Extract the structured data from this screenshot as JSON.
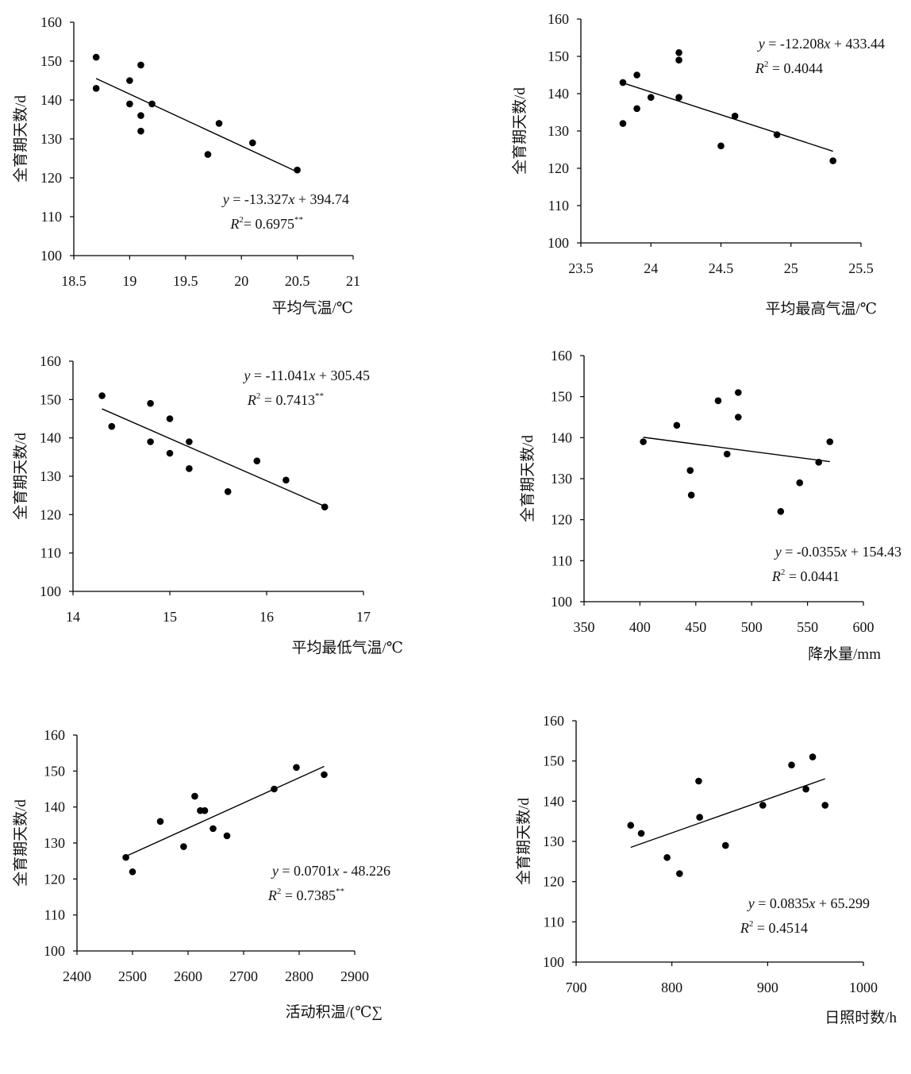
{
  "chart_data": [
    {
      "type": "scatter",
      "xlabel": "平均气温/℃",
      "ylabel": "全育期天数/d",
      "xlim": [
        18.5,
        21
      ],
      "ylim": [
        100,
        160
      ],
      "xticks": [
        "18.5",
        "19",
        "19.5",
        "20",
        "20.5",
        "21"
      ],
      "yticks": [
        "100",
        "110",
        "120",
        "130",
        "140",
        "150",
        "160"
      ],
      "points": [
        [
          18.7,
          151
        ],
        [
          18.7,
          143
        ],
        [
          19.0,
          145
        ],
        [
          19.0,
          139
        ],
        [
          19.1,
          149
        ],
        [
          19.1,
          136
        ],
        [
          19.1,
          132
        ],
        [
          19.2,
          139
        ],
        [
          19.7,
          126
        ],
        [
          19.8,
          134
        ],
        [
          20.1,
          129
        ],
        [
          20.5,
          122
        ]
      ],
      "trend": {
        "x": [
          18.7,
          20.5
        ]
      },
      "equation": {
        "y": "y",
        "eq_rest": " = -13.327",
        "x": "x",
        "tail": " + 394.74",
        "r": "R",
        "two": "2",
        "r_rest": "= 0.6975",
        "stars": "**"
      },
      "eq_anchor": "right"
    },
    {
      "type": "scatter",
      "xlabel": "平均最高气温/℃",
      "ylabel": "全育期天数/d",
      "xlim": [
        23.5,
        25.5
      ],
      "ylim": [
        100,
        160
      ],
      "xticks": [
        "23.5",
        "24",
        "24.5",
        "25",
        "25.5"
      ],
      "yticks": [
        "100",
        "110",
        "120",
        "130",
        "140",
        "150",
        "160"
      ],
      "points": [
        [
          23.8,
          143
        ],
        [
          23.8,
          132
        ],
        [
          23.9,
          145
        ],
        [
          23.9,
          136
        ],
        [
          24.0,
          139
        ],
        [
          24.2,
          151
        ],
        [
          24.2,
          149
        ],
        [
          24.2,
          139
        ],
        [
          24.5,
          126
        ],
        [
          24.6,
          134
        ],
        [
          24.9,
          129
        ],
        [
          25.3,
          122
        ]
      ],
      "trend": {
        "x": [
          23.8,
          25.3
        ]
      },
      "equation": {
        "y": "y",
        "eq_rest": " = -12.208",
        "x": "x",
        "tail": " + 433.44",
        "r": "R",
        "two": "2",
        "r_rest": " = 0.4044",
        "stars": ""
      },
      "eq_anchor": "top-right"
    },
    {
      "type": "scatter",
      "xlabel": "平均最低气温/℃",
      "ylabel": "全育期天数/d",
      "xlim": [
        14,
        17
      ],
      "ylim": [
        100,
        160
      ],
      "xticks": [
        "14",
        "15",
        "16",
        "17"
      ],
      "yticks": [
        "100",
        "110",
        "120",
        "130",
        "140",
        "150",
        "160"
      ],
      "points": [
        [
          14.3,
          151
        ],
        [
          14.4,
          143
        ],
        [
          14.8,
          149
        ],
        [
          14.8,
          139
        ],
        [
          15.0,
          145
        ],
        [
          15.0,
          136
        ],
        [
          15.2,
          139
        ],
        [
          15.2,
          132
        ],
        [
          15.6,
          126
        ],
        [
          15.9,
          134
        ],
        [
          16.2,
          129
        ],
        [
          16.6,
          122
        ]
      ],
      "trend": {
        "x": [
          14.3,
          16.6
        ]
      },
      "equation": {
        "y": "y",
        "eq_rest": " = -11.041",
        "x": "x",
        "tail": " + 305.45",
        "r": "R",
        "two": "2",
        "r_rest": " = 0.7413",
        "stars": "**"
      },
      "eq_anchor": "top-right"
    },
    {
      "type": "scatter",
      "xlabel": "降水量/mm",
      "ylabel": "全育期天数/d",
      "xlim": [
        350,
        600
      ],
      "ylim": [
        100,
        160
      ],
      "xticks": [
        "350",
        "400",
        "450",
        "500",
        "550",
        "600"
      ],
      "yticks": [
        "100",
        "110",
        "120",
        "130",
        "140",
        "150",
        "160"
      ],
      "points": [
        [
          403,
          139
        ],
        [
          433,
          143
        ],
        [
          445,
          132
        ],
        [
          446,
          126
        ],
        [
          470,
          149
        ],
        [
          478,
          136
        ],
        [
          488,
          151
        ],
        [
          488,
          145
        ],
        [
          526,
          122
        ],
        [
          543,
          129
        ],
        [
          560,
          134
        ],
        [
          570,
          139
        ]
      ],
      "trend": {
        "x": [
          403,
          570
        ]
      },
      "equation": {
        "y": "y",
        "eq_rest": " = -0.0355",
        "x": "x",
        "tail": " + 154.43",
        "r": "R",
        "two": "2",
        "r_rest": " = 0.0441",
        "stars": ""
      },
      "eq_anchor": "right"
    },
    {
      "type": "scatter",
      "xlabel": "活动积温/(℃∑",
      "ylabel": "全育期天数/d",
      "xlim": [
        2400,
        2900
      ],
      "ylim": [
        100,
        160
      ],
      "xticks": [
        "2400",
        "2500",
        "2600",
        "2700",
        "2800",
        "2900"
      ],
      "yticks": [
        "100",
        "110",
        "120",
        "130",
        "140",
        "150",
        "160"
      ],
      "points": [
        [
          2488,
          126
        ],
        [
          2500,
          122
        ],
        [
          2550,
          136
        ],
        [
          2592,
          129
        ],
        [
          2612,
          143
        ],
        [
          2622,
          139
        ],
        [
          2630,
          139
        ],
        [
          2645,
          134
        ],
        [
          2670,
          132
        ],
        [
          2755,
          145
        ],
        [
          2795,
          151
        ],
        [
          2845,
          149
        ]
      ],
      "trend": {
        "x": [
          2488,
          2845
        ]
      },
      "equation": {
        "y": "y",
        "eq_rest": " = 0.0701",
        "x": "x",
        "tail": " - 48.226",
        "r": "R",
        "two": "2",
        "r_rest": " = 0.7385",
        "stars": "**"
      },
      "eq_anchor": "right"
    },
    {
      "type": "scatter",
      "xlabel": "日照时数/h",
      "ylabel": "全育期天数/d",
      "xlim": [
        700,
        1000
      ],
      "ylim": [
        100,
        160
      ],
      "xticks": [
        "700",
        "800",
        "900",
        "1000"
      ],
      "yticks": [
        "100",
        "110",
        "120",
        "130",
        "140",
        "150",
        "160"
      ],
      "points": [
        [
          757,
          134
        ],
        [
          768,
          132
        ],
        [
          795,
          126
        ],
        [
          808,
          122
        ],
        [
          828,
          145
        ],
        [
          829,
          136
        ],
        [
          856,
          129
        ],
        [
          895,
          139
        ],
        [
          925,
          149
        ],
        [
          940,
          143
        ],
        [
          947,
          151
        ],
        [
          960,
          139
        ]
      ],
      "trend": {
        "x": [
          757,
          960
        ]
      },
      "equation": {
        "y": "y",
        "eq_rest": " = 0.0835",
        "x": "x",
        "tail": " + 65.299",
        "r": "R",
        "two": "2",
        "r_rest": " = 0.4514",
        "stars": ""
      },
      "eq_anchor": "right"
    }
  ]
}
